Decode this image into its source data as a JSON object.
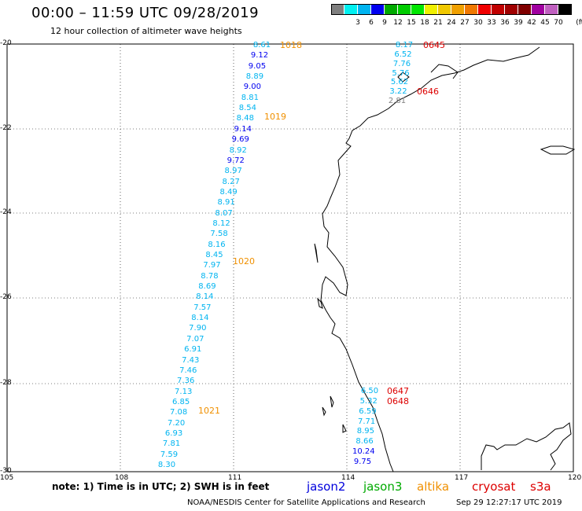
{
  "title": "00:00 – 11:59 UTC 09/28/2019",
  "subtitle": "12 hour collection of altimeter wave heights",
  "scale": {
    "unit": "(ft)",
    "colors": [
      "#7f7f7f",
      "#00f0f0",
      "#00b4f0",
      "#0000f0",
      "#00aa00",
      "#00cc00",
      "#00e600",
      "#f0f000",
      "#f0c800",
      "#f0a000",
      "#f07800",
      "#f00000",
      "#c00000",
      "#a00000",
      "#800000",
      "#a000a0",
      "#c060c0",
      "#000000"
    ],
    "labels": [
      "3",
      "6",
      "9",
      "12",
      "15",
      "18",
      "21",
      "24",
      "27",
      "30",
      "33",
      "36",
      "39",
      "42",
      "45",
      "70"
    ]
  },
  "axes": {
    "lat": [
      "-20",
      "-22",
      "-24",
      "-26",
      "-28",
      "-30"
    ],
    "lon": [
      "105",
      "108",
      "111",
      "114",
      "117",
      "120"
    ]
  },
  "wave_heights": {
    "track_west": [
      "8.61",
      "9.12",
      "9.05",
      "8.89",
      "9.00",
      "8.81",
      "8.54",
      "8.48",
      "9.14",
      "9.69",
      "8.92",
      "9.72",
      "8.97",
      "8.27",
      "8.49",
      "8.91",
      "8.07",
      "8.12",
      "7.58",
      "8.16",
      "8.45",
      "7.97",
      "8.78",
      "8.69",
      "8.14",
      "7.57",
      "8.14",
      "7.90",
      "7.07",
      "6.91",
      "7.43",
      "7.46",
      "7.36",
      "7.13",
      "6.85",
      "7.08",
      "7.20",
      "6.93",
      "7.81",
      "7.59",
      "8.30"
    ],
    "track_north": [
      "8.17",
      "6.52",
      "7.76",
      "5.76",
      "5.62",
      "3.22",
      "2.81"
    ],
    "track_south": [
      "6.50",
      "5.32",
      "6.59",
      "7.71",
      "8.95",
      "8.66",
      "10.24",
      "9.75"
    ]
  },
  "pass_times": {
    "altika": [
      "1018",
      "1019",
      "1020",
      "1021"
    ],
    "cryosat": [
      "0645",
      "0646",
      "0647",
      "0648"
    ]
  },
  "note": "note: 1) Time is in UTC; 2) SWH is in feet",
  "satellites": [
    {
      "name": "jason2",
      "color": "#0000dd"
    },
    {
      "name": "jason3",
      "color": "#00aa00"
    },
    {
      "name": "altika",
      "color": "#f09000"
    },
    {
      "name": "cryosat",
      "color": "#dd0000"
    },
    {
      "name": "s3a",
      "color": "#dd0000"
    }
  ],
  "credit": "NOAA/NESDIS Center for Satellite Applications and Research",
  "timestamp": "Sep 29 12:27:17 UTC 2019"
}
